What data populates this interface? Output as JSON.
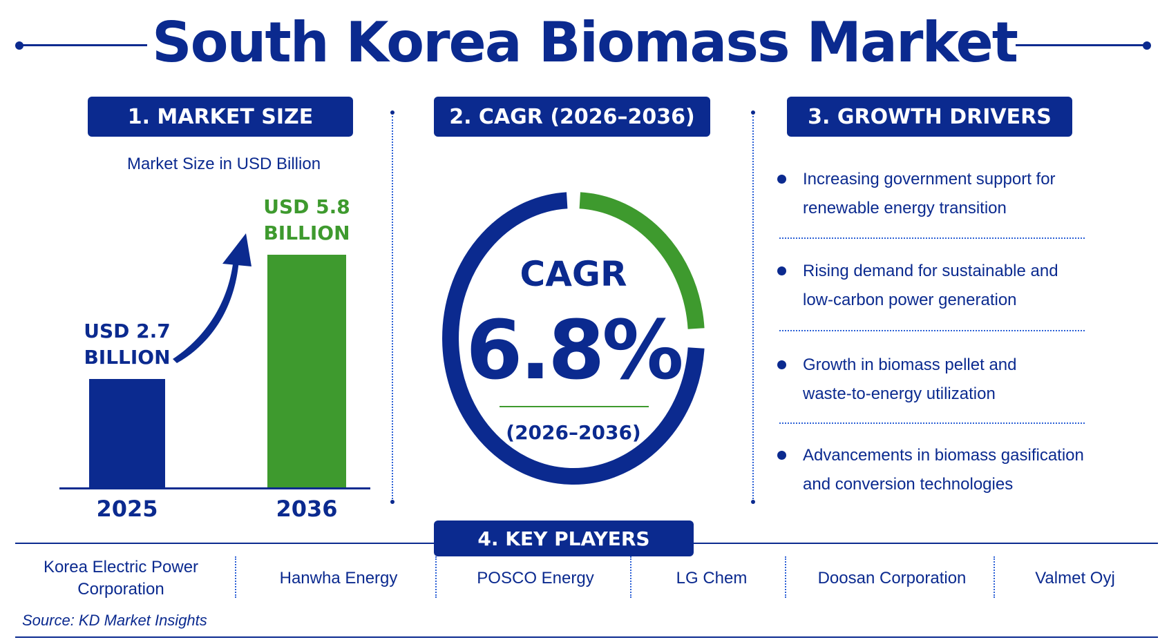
{
  "title": "South Korea Biomass Market",
  "market_size": {
    "heading": "1. MARKET SIZE",
    "subtitle": "Market Size in USD Billion",
    "bars": [
      {
        "year": "2025",
        "value": 2.7,
        "label_line1": "USD 2.7",
        "label_line2": "BILLION",
        "color": "#0b2a8f"
      },
      {
        "year": "2036",
        "value": 5.8,
        "label_line1": "USD 5.8",
        "label_line2": "BILLION",
        "color": "#3e9a2e"
      }
    ]
  },
  "chart_data": {
    "type": "bar",
    "categories": [
      "2025",
      "2036"
    ],
    "values": [
      2.7,
      5.8
    ],
    "title": "Market Size in USD Billion"
  },
  "cagr": {
    "heading": "2. CAGR (2026–2036)",
    "label": "CAGR",
    "value": "6.8%",
    "period": "(2026–2036)",
    "ring_primary_color": "#0b2a8f",
    "ring_accent_color": "#3e9a2e"
  },
  "growth_drivers": {
    "heading": "3. GROWTH DRIVERS",
    "items": [
      {
        "line1": "Increasing government support for",
        "line2": "renewable energy transition"
      },
      {
        "line1": "Rising demand for sustainable and",
        "line2": "low-carbon power generation"
      },
      {
        "line1": "Growth in biomass pellet and",
        "line2": "waste-to-energy utilization"
      },
      {
        "line1": "Advancements in biomass gasification",
        "line2": "and conversion technologies"
      }
    ]
  },
  "key_players": {
    "heading": "4. KEY PLAYERS",
    "items": [
      {
        "line1": "Korea Electric Power",
        "line2": "Corporation"
      },
      {
        "line1": "Hanwha Energy",
        "line2": ""
      },
      {
        "line1": "POSCO Energy",
        "line2": ""
      },
      {
        "line1": "LG Chem",
        "line2": ""
      },
      {
        "line1": "Doosan Corporation",
        "line2": ""
      },
      {
        "line1": "Valmet Oyj",
        "line2": ""
      }
    ]
  },
  "source": "Source:  KD Market Insights"
}
